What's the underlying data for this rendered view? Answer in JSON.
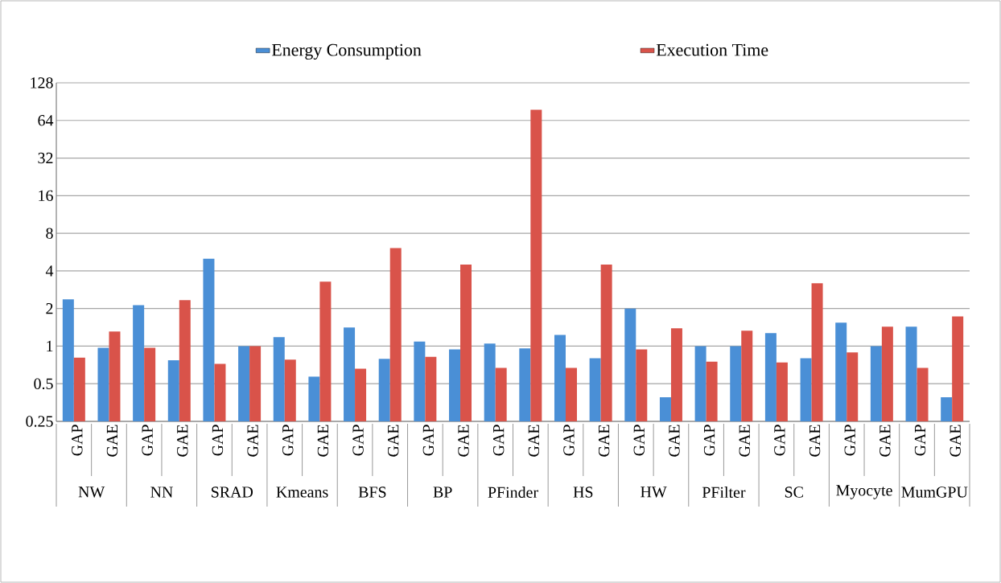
{
  "chart_data": {
    "type": "bar",
    "categories": [
      "GAP",
      "GAE",
      "GAP",
      "GAE",
      "GAP",
      "GAE",
      "GAP",
      "GAE",
      "GAP",
      "GAE",
      "GAP",
      "GAE",
      "GAP",
      "GAE",
      "GAP",
      "GAE",
      "GAP",
      "GAE",
      "GAP",
      "GAE",
      "GAP",
      "GAE",
      "GAP",
      "GAE",
      "GAP",
      "GAE"
    ],
    "series": [
      {
        "name": "Energy Consumption",
        "color": "#4a8fd6",
        "values": [
          2.37,
          0.97,
          2.13,
          0.77,
          5.0,
          1.0,
          1.18,
          0.57,
          1.41,
          0.79,
          1.09,
          0.94,
          1.05,
          0.96,
          1.23,
          0.8,
          2.0,
          0.39,
          1.0,
          1.0,
          1.27,
          0.8,
          1.54,
          1.0,
          1.43,
          0.39
        ]
      },
      {
        "name": "Execution Time",
        "color": "#d9534a",
        "values": [
          0.81,
          1.31,
          0.97,
          2.33,
          0.72,
          1.0,
          0.78,
          3.28,
          0.66,
          6.1,
          0.82,
          4.5,
          0.67,
          78,
          0.67,
          4.5,
          0.94,
          1.39,
          0.75,
          1.33,
          0.74,
          3.18,
          0.89,
          1.43,
          0.67,
          1.73
        ]
      }
    ],
    "annotations": [
      "NW",
      "NN",
      "SRAD",
      "Kmeans",
      "BFS",
      "BP",
      "PFinder",
      "HS",
      "HW",
      "PFilter",
      "SC",
      "Myocyte",
      "MumGPU"
    ],
    "log": "y",
    "ylim": [
      0.25,
      128
    ],
    "yticks": [
      0.25,
      0.5,
      1,
      2,
      4,
      8,
      16,
      32,
      64,
      128
    ],
    "grid": "y",
    "legend": "top"
  }
}
